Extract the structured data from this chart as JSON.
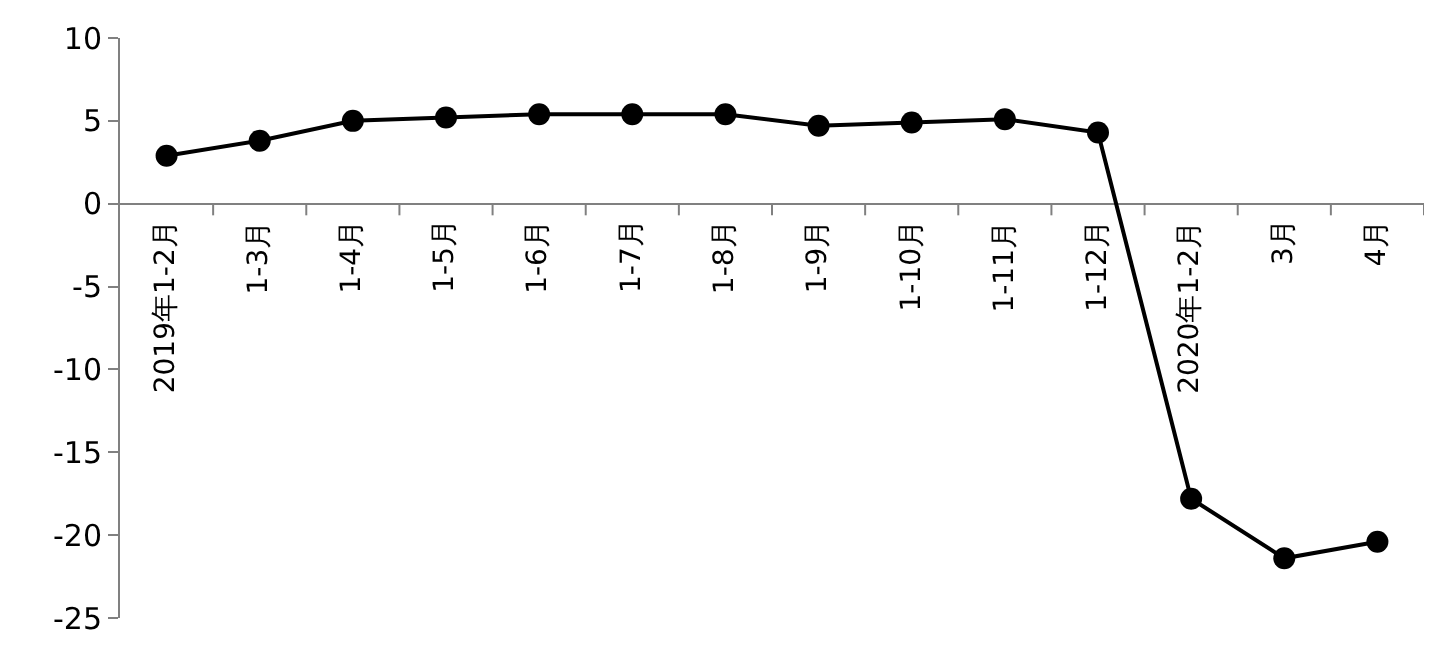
{
  "chart_data": {
    "type": "line",
    "categories": [
      "2019年1-2月",
      "1-3月",
      "1-4月",
      "1-5月",
      "1-6月",
      "1-7月",
      "1-8月",
      "1-9月",
      "1-10月",
      "1-11月",
      "1-12月",
      "2020年1-2月",
      "3月",
      "4月"
    ],
    "series": [
      {
        "color": "#000000",
        "values": [
          2.9,
          3.8,
          5.0,
          5.2,
          5.4,
          5.4,
          5.4,
          4.7,
          4.9,
          5.1,
          4.3,
          -17.8,
          -21.4,
          -20.4
        ]
      }
    ],
    "ylim": [
      -25,
      10
    ],
    "yticks": [
      -25,
      -20,
      -15,
      -10,
      -5,
      0,
      5,
      10
    ],
    "marker": "circle",
    "line_style": "solid"
  }
}
